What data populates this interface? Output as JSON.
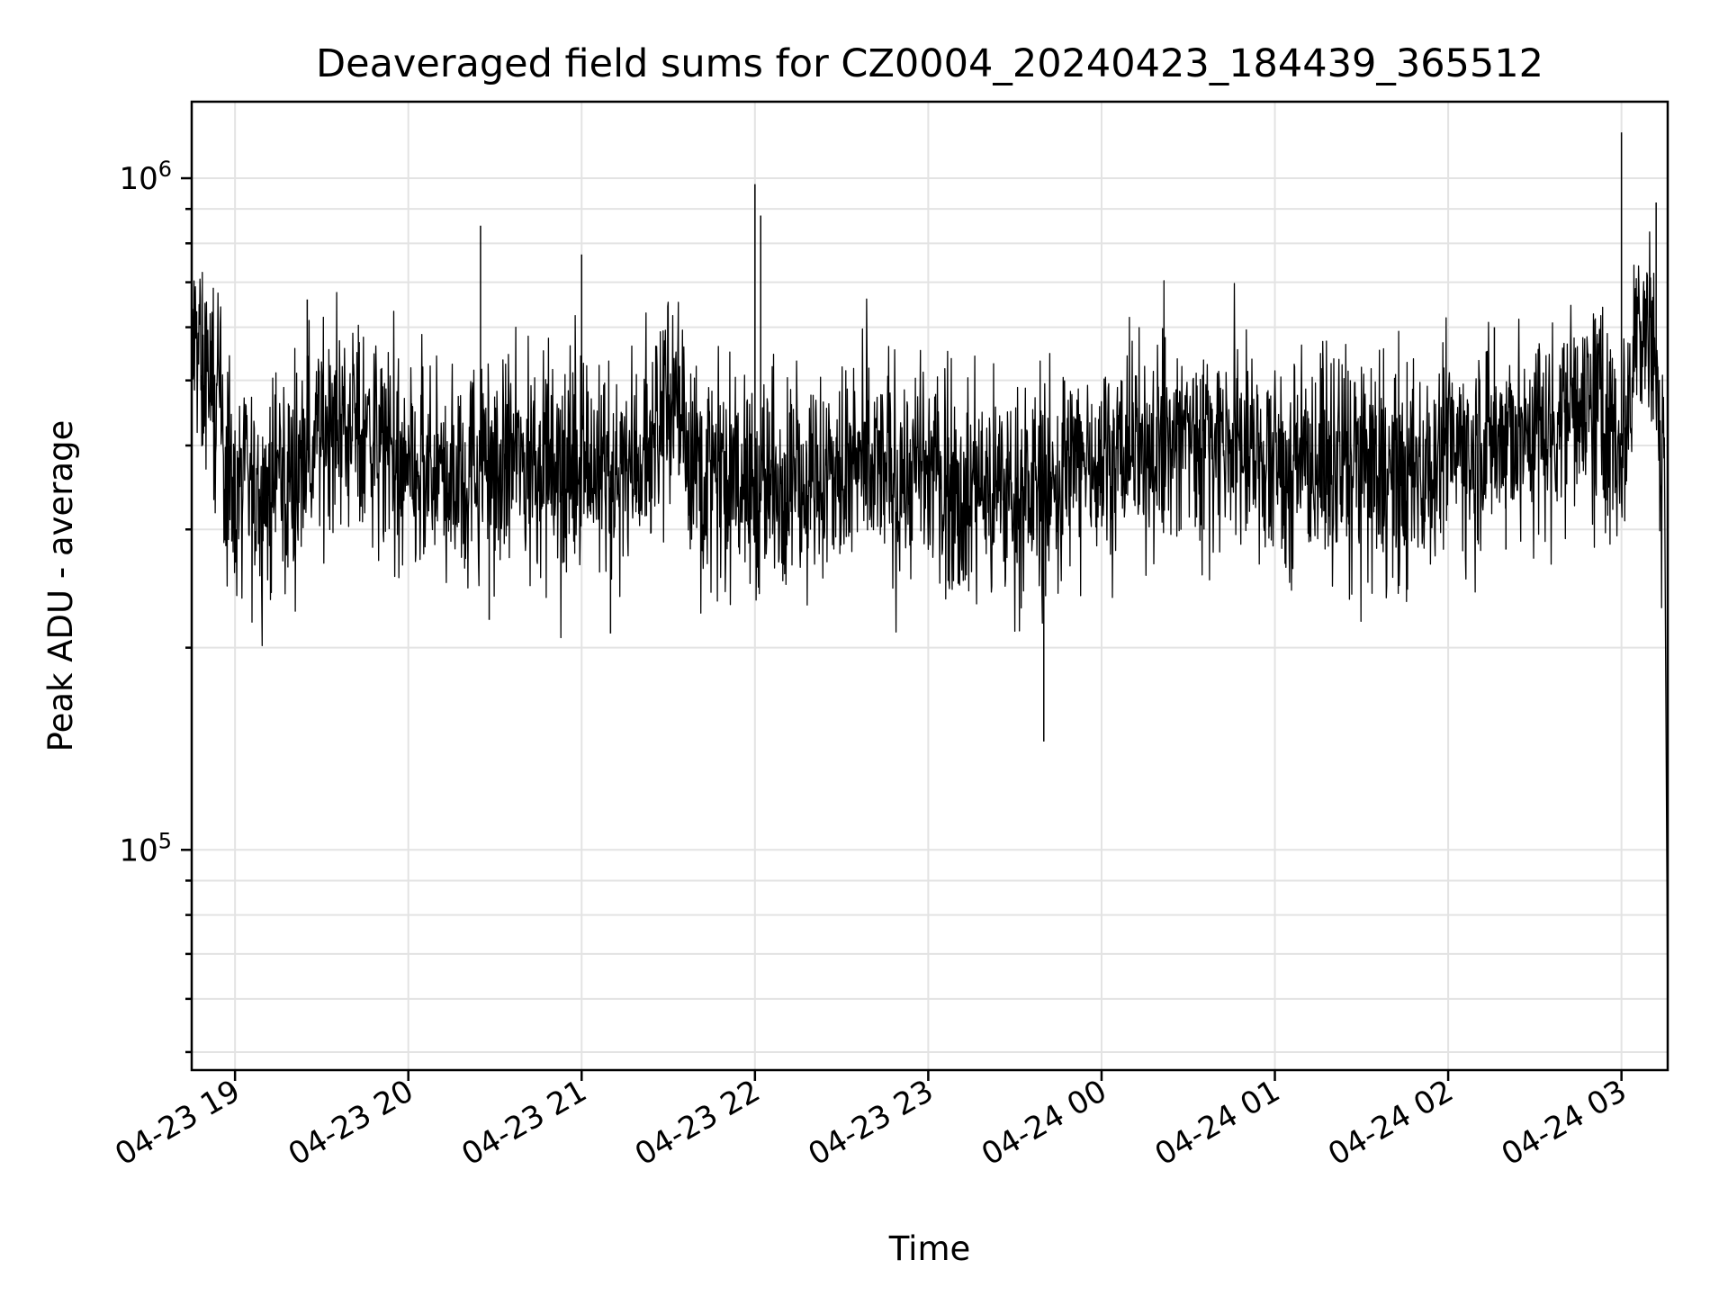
{
  "chart_data": {
    "type": "line",
    "title": "Deaveraged field sums for CZ0004_20240423_184439_365512",
    "xlabel": "Time",
    "ylabel": "Peak ADU - average",
    "y_scale": "log",
    "ylim": [
      47000,
      1300000
    ],
    "xlim": [
      "2024-04-23 18:45",
      "2024-04-24 03:16"
    ],
    "x_ticks": [
      {
        "label": "04-23 19",
        "t": "2024-04-23 19:00"
      },
      {
        "label": "04-23 20",
        "t": "2024-04-23 20:00"
      },
      {
        "label": "04-23 21",
        "t": "2024-04-23 21:00"
      },
      {
        "label": "04-23 22",
        "t": "2024-04-23 22:00"
      },
      {
        "label": "04-23 23",
        "t": "2024-04-23 23:00"
      },
      {
        "label": "04-24 00",
        "t": "2024-04-24 00:00"
      },
      {
        "label": "04-24 01",
        "t": "2024-04-24 01:00"
      },
      {
        "label": "04-24 02",
        "t": "2024-04-24 02:00"
      },
      {
        "label": "04-24 03",
        "t": "2024-04-24 03:00"
      }
    ],
    "y_major_ticks": [
      {
        "value": 100000,
        "base": "10",
        "exp": "5"
      },
      {
        "value": 1000000,
        "base": "10",
        "exp": "6"
      }
    ],
    "grid": true,
    "line_color": "#000000",
    "series": [
      {
        "x": [
          "2024-04-23 18:45",
          "2024-04-23 18:50",
          "2024-04-23 18:55",
          "2024-04-23 19:00",
          "2024-04-23 19:10",
          "2024-04-23 19:20",
          "2024-04-23 19:30",
          "2024-04-23 19:40",
          "2024-04-23 19:50",
          "2024-04-23 20:00",
          "2024-04-23 20:15",
          "2024-04-23 20:30",
          "2024-04-23 20:45",
          "2024-04-23 21:00",
          "2024-04-23 21:15",
          "2024-04-23 21:30",
          "2024-04-23 21:45",
          "2024-04-23 22:00",
          "2024-04-23 22:15",
          "2024-04-23 22:30",
          "2024-04-23 22:45",
          "2024-04-23 23:00",
          "2024-04-23 23:15",
          "2024-04-23 23:30",
          "2024-04-23 23:45",
          "2024-04-23 23:52",
          "2024-04-24 00:00",
          "2024-04-24 00:15",
          "2024-04-24 00:30",
          "2024-04-24 00:45",
          "2024-04-24 01:00",
          "2024-04-24 01:15",
          "2024-04-24 01:30",
          "2024-04-24 01:45",
          "2024-04-24 02:00",
          "2024-04-24 02:15",
          "2024-04-24 02:30",
          "2024-04-24 02:45",
          "2024-04-24 02:55",
          "2024-04-24 03:00",
          "2024-04-24 03:05",
          "2024-04-24 03:10",
          "2024-04-24 03:15",
          "2024-04-24 03:16"
        ],
        "values": [
          560000,
          510000,
          440000,
          340000,
          340000,
          360000,
          430000,
          450000,
          400000,
          350000,
          360000,
          380000,
          380000,
          380000,
          360000,
          460000,
          360000,
          350000,
          360000,
          360000,
          370000,
          360000,
          340000,
          340000,
          350000,
          380000,
          400000,
          390000,
          420000,
          400000,
          370000,
          380000,
          370000,
          360000,
          400000,
          410000,
          420000,
          470000,
          440000,
          400000,
          600000,
          620000,
          380000,
          55000
        ]
      }
    ],
    "spikes": [
      {
        "t": "2024-04-23 19:25",
        "value": 660000
      },
      {
        "t": "2024-04-23 20:25",
        "value": 850000
      },
      {
        "t": "2024-04-23 20:28",
        "value": 220000
      },
      {
        "t": "2024-04-23 21:00",
        "value": 770000
      },
      {
        "t": "2024-04-23 21:10",
        "value": 210000
      },
      {
        "t": "2024-04-23 22:00",
        "value": 980000
      },
      {
        "t": "2024-04-23 22:02",
        "value": 880000
      },
      {
        "t": "2024-04-23 23:40",
        "value": 145000
      },
      {
        "t": "2024-04-24 00:22",
        "value": 580000
      },
      {
        "t": "2024-04-24 02:16",
        "value": 600000
      },
      {
        "t": "2024-04-24 02:20",
        "value": 280000
      },
      {
        "t": "2024-04-24 03:00",
        "value": 1170000
      },
      {
        "t": "2024-04-24 03:12",
        "value": 920000
      }
    ]
  }
}
